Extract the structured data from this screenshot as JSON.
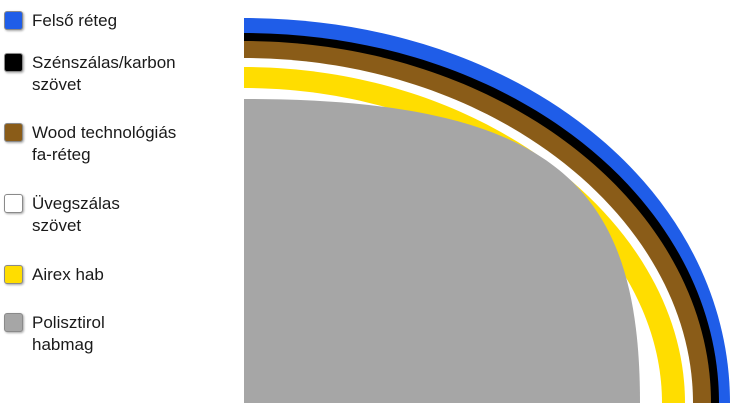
{
  "legend": {
    "items": [
      {
        "label": "Felső réteg",
        "color": "#1f5de8"
      },
      {
        "label": "Szénszálas/karbon\nszövet",
        "color": "#000000"
      },
      {
        "label": "Wood technológiás\nfa-réteg",
        "color": "#8a5c18"
      },
      {
        "label": "Üvegszálas\nszövet",
        "color": "#ffffff"
      },
      {
        "label": "Airex hab",
        "color": "#ffdd00"
      },
      {
        "label": "Polisztirol\nhabmag",
        "color": "#a6a6a6"
      }
    ]
  }
}
